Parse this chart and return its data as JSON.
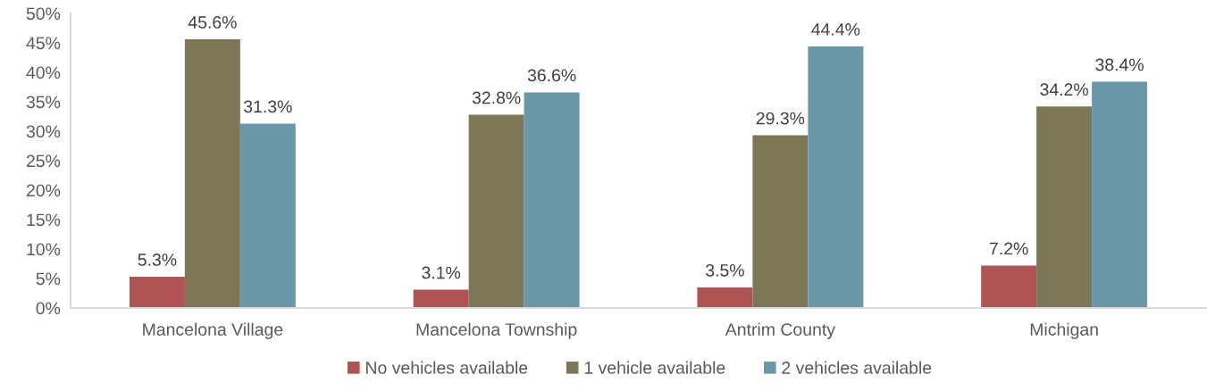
{
  "chart_data": {
    "type": "bar",
    "categories": [
      "Mancelona Village",
      "Mancelona Township",
      "Antrim County",
      "Michigan"
    ],
    "series": [
      {
        "name": "No vehicles available",
        "color": "#b05355",
        "values": [
          5.3,
          3.1,
          3.5,
          7.2
        ],
        "value_labels": [
          "5.3%",
          "3.1%",
          "3.5%",
          "7.2%"
        ]
      },
      {
        "name": "1 vehicle available",
        "color": "#7d7757",
        "values": [
          45.6,
          32.8,
          29.3,
          34.2
        ],
        "value_labels": [
          "45.6%",
          "32.8%",
          "29.3%",
          "34.2%"
        ]
      },
      {
        "name": "2 vehicles available",
        "color": "#6a98a8",
        "values": [
          31.3,
          36.6,
          44.4,
          38.4
        ],
        "value_labels": [
          "31.3%",
          "36.6%",
          "44.4%",
          "38.4%"
        ]
      }
    ],
    "ylim": [
      0,
      50
    ],
    "yticks": [
      {
        "value": 0,
        "label": "0%"
      },
      {
        "value": 5,
        "label": "5%"
      },
      {
        "value": 10,
        "label": "10%"
      },
      {
        "value": 15,
        "label": "15%"
      },
      {
        "value": 20,
        "label": "20%"
      },
      {
        "value": 25,
        "label": "25%"
      },
      {
        "value": 30,
        "label": "30%"
      },
      {
        "value": 35,
        "label": "35%"
      },
      {
        "value": 40,
        "label": "40%"
      },
      {
        "value": 45,
        "label": "45%"
      },
      {
        "value": 50,
        "label": "50%"
      }
    ],
    "grid": false,
    "legend": "bottom"
  }
}
